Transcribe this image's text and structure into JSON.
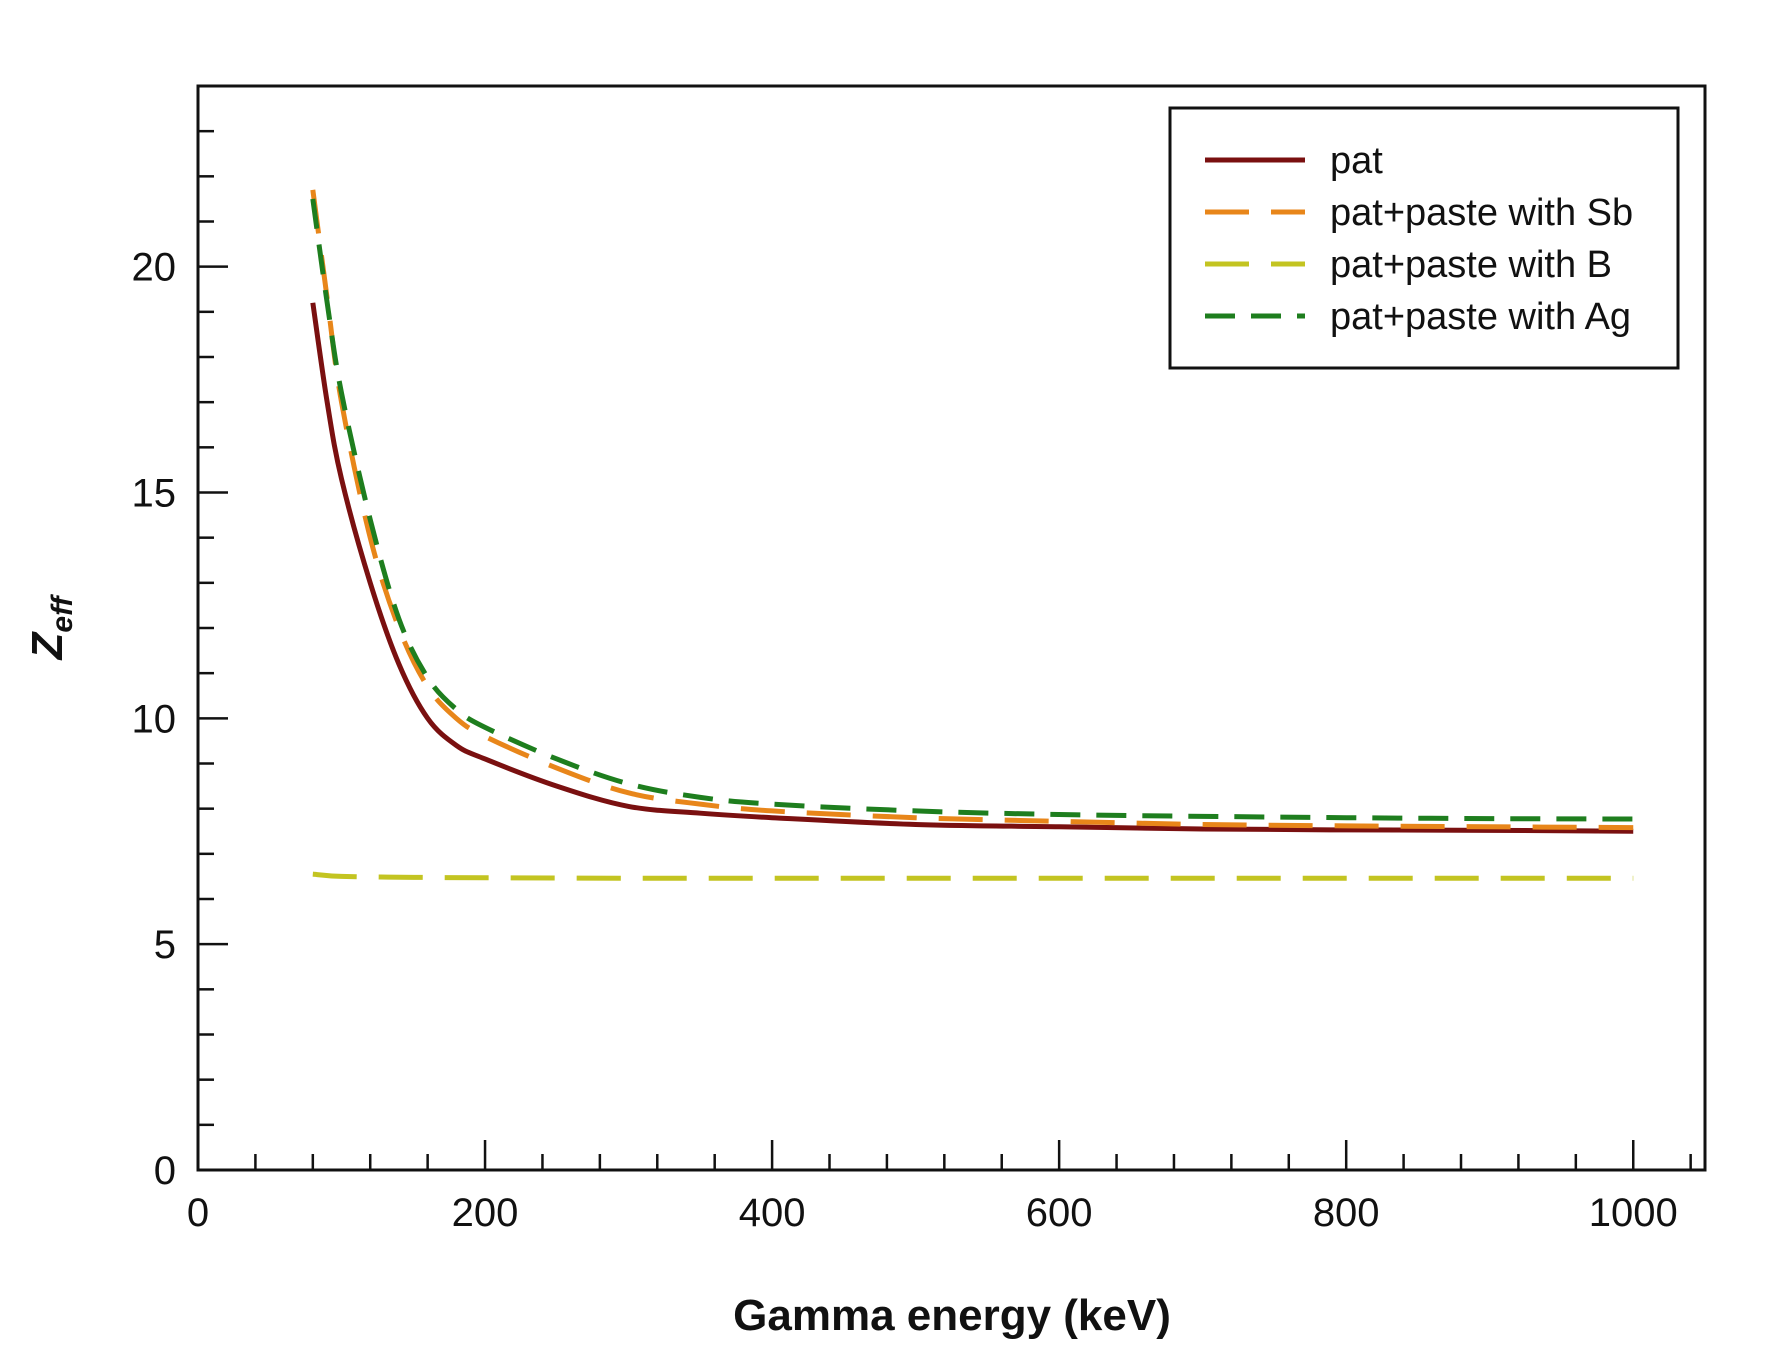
{
  "chart_data": {
    "type": "line",
    "xlabel": "Gamma energy (keV)",
    "ylabel": {
      "main": "Z",
      "sub": "eff"
    },
    "xlim": [
      0,
      1050
    ],
    "ylim": [
      0,
      24
    ],
    "x_major_ticks": [
      0,
      200,
      400,
      600,
      800,
      1000
    ],
    "y_major_ticks": [
      0,
      5,
      10,
      15,
      20
    ],
    "x_minor_step": 40,
    "y_minor_step": 1,
    "grid": false,
    "legend_position": "top-right",
    "series": [
      {
        "name": "pat",
        "color": "#7a1010",
        "dash": "solid",
        "x": [
          80,
          90,
          100,
          120,
          140,
          160,
          180,
          200,
          250,
          300,
          350,
          400,
          500,
          600,
          700,
          800,
          900,
          1000
        ],
        "y": [
          19.2,
          17.0,
          15.3,
          13.0,
          11.2,
          10.0,
          9.4,
          9.1,
          8.5,
          8.05,
          7.9,
          7.8,
          7.65,
          7.6,
          7.55,
          7.53,
          7.52,
          7.5
        ]
      },
      {
        "name": "pat+paste with Sb",
        "color": "#e8861a",
        "dash": "long",
        "x": [
          80,
          90,
          100,
          120,
          140,
          160,
          180,
          200,
          250,
          300,
          350,
          400,
          500,
          600,
          700,
          800,
          900,
          1000
        ],
        "y": [
          21.7,
          19.3,
          17.0,
          14.0,
          12.0,
          10.7,
          10.0,
          9.6,
          8.9,
          8.35,
          8.1,
          7.95,
          7.8,
          7.72,
          7.65,
          7.62,
          7.6,
          7.58
        ]
      },
      {
        "name": "pat+paste with B",
        "color": "#c3c421",
        "dash": "long",
        "x": [
          80,
          100,
          150,
          200,
          300,
          400,
          500,
          600,
          700,
          800,
          900,
          1000
        ],
        "y": [
          6.55,
          6.5,
          6.48,
          6.47,
          6.46,
          6.46,
          6.46,
          6.46,
          6.46,
          6.46,
          6.46,
          6.46
        ]
      },
      {
        "name": "pat+paste with Ag",
        "color": "#1e7e1e",
        "dash": "medium",
        "x": [
          80,
          90,
          100,
          120,
          140,
          160,
          180,
          200,
          250,
          300,
          350,
          400,
          500,
          600,
          700,
          800,
          900,
          1000
        ],
        "y": [
          21.5,
          19.2,
          17.2,
          14.4,
          12.2,
          10.9,
          10.2,
          9.8,
          9.1,
          8.55,
          8.25,
          8.1,
          7.95,
          7.87,
          7.83,
          7.8,
          7.78,
          7.77
        ]
      }
    ]
  }
}
